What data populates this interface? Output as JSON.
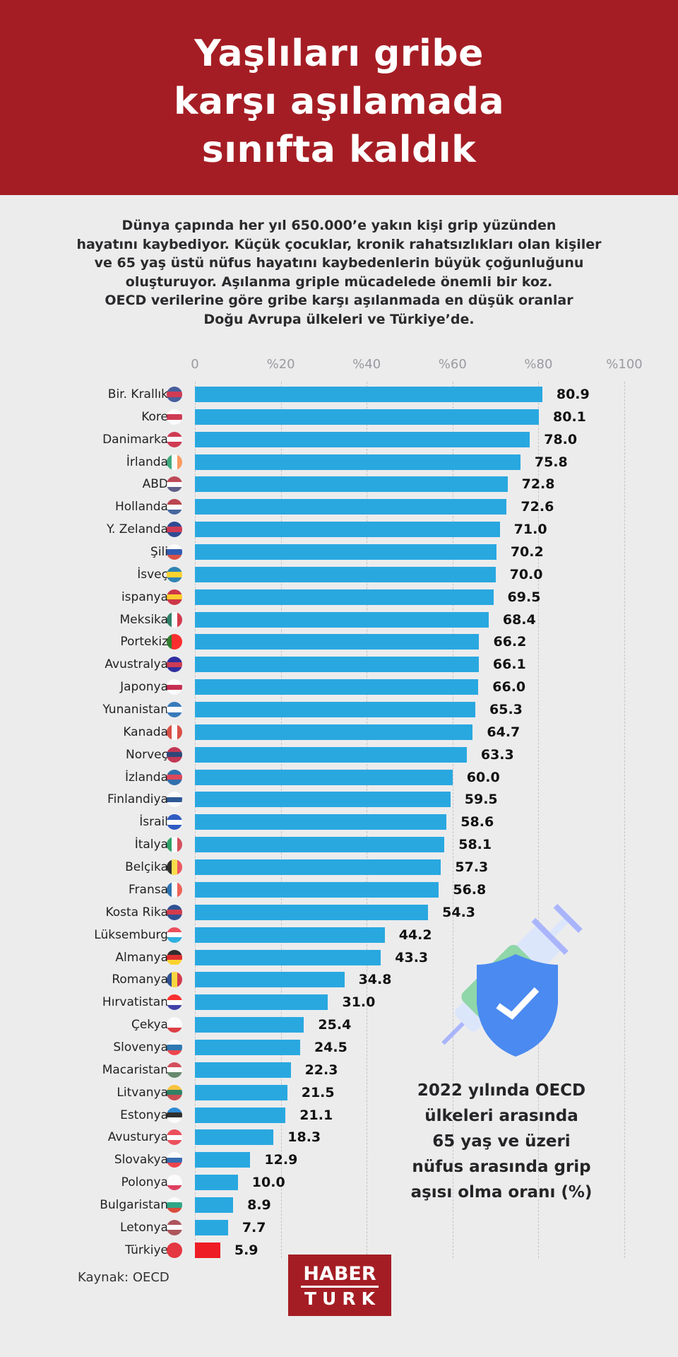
{
  "header": {
    "title_lines": [
      "Yaşlıları gribe",
      "karşı aşılamada",
      "sınıfta kaldık"
    ]
  },
  "intro_lines": [
    "Dünya çapında her yıl 650.000’e yakın kişi grip yüzünden",
    "hayatını kaybediyor.  Küçük çocuklar, kronik rahatsızlıkları olan kişiler",
    "ve 65 yaş üstü nüfus hayatını kaybedenlerin büyük çoğunluğunu",
    "oluşturuyor. Aşılanma griple mücadelede önemli bir koz.",
    "OECD verilerine göre gribe karşı aşılanmada en düşük oranlar",
    "Doğu Avrupa ülkeleri ve Türkiye’de."
  ],
  "chart_data": {
    "type": "bar",
    "orientation": "horizontal",
    "title": "2022 yılında OECD ülkeleri arasında 65 yaş ve üzeri nüfus arasında grip aşısı olma oranı (%)",
    "xlim": [
      0,
      100
    ],
    "tick_labels": [
      "0",
      "%20",
      "%40",
      "%60",
      "%80",
      "%100"
    ],
    "grid": true,
    "bar_color": "#29a8e0",
    "highlight_color": "#ee1c25",
    "highlight_category": "Türkiye",
    "categories": [
      "Bir. Krallık",
      "Kore",
      "Danimarka",
      "İrlanda",
      "ABD",
      "Hollanda",
      "Y. Zelanda",
      "Şili",
      "İsveç",
      "ispanya",
      "Meksika",
      "Portekiz",
      "Avustralya",
      "Japonya",
      "Yunanistan",
      "Kanada",
      "Norveç",
      "İzlanda",
      "Finlandiya",
      "İsrail",
      "İtalya",
      "Belçika",
      "Fransa",
      "Kosta Rika",
      "Lüksemburg",
      "Almanya",
      "Romanya",
      "Hırvatistan",
      "Çekya",
      "Slovenya",
      "Macaristan",
      "Litvanya",
      "Estonya",
      "Avusturya",
      "Slovakya",
      "Polonya",
      "Bulgaristan",
      "Letonya",
      "Türkiye"
    ],
    "values": [
      80.9,
      80.1,
      78.0,
      75.8,
      72.8,
      72.6,
      71.0,
      70.2,
      70.0,
      69.5,
      68.4,
      66.2,
      66.1,
      66.0,
      65.3,
      64.7,
      63.3,
      60.0,
      59.5,
      58.6,
      58.1,
      57.3,
      56.8,
      54.3,
      44.2,
      43.3,
      34.8,
      31.0,
      25.4,
      24.5,
      22.3,
      21.5,
      21.1,
      18.3,
      12.9,
      10.0,
      8.9,
      7.7,
      5.9
    ],
    "value_labels": [
      "80.9",
      "80.1",
      "78.0",
      "75.8",
      "72.8",
      "72.6",
      "71.0",
      "70.2",
      "70.0",
      "69.5",
      "68.4",
      "66.2",
      "66.1",
      "66.0",
      "65.3",
      "64.7",
      "63.3",
      "60.0",
      "59.5",
      "58.6",
      "58.1",
      "57.3",
      "56.8",
      "54.3",
      "44.2",
      "43.3",
      "34.8",
      "31.0",
      "25.4",
      "24.5",
      "22.3",
      "21.5",
      "21.1",
      "18.3",
      "12.9",
      "10.0",
      "8.9",
      "7.7",
      "5.9"
    ]
  },
  "caption_lines": [
    "2022 yılında OECD",
    "ülkeleri arasında",
    "65 yaş ve üzeri",
    "nüfus arasında grip",
    "aşısı olma oranı (%)"
  ],
  "source": "Kaynak: OECD",
  "logo": {
    "line1": "HABER",
    "line2": "TURK"
  }
}
